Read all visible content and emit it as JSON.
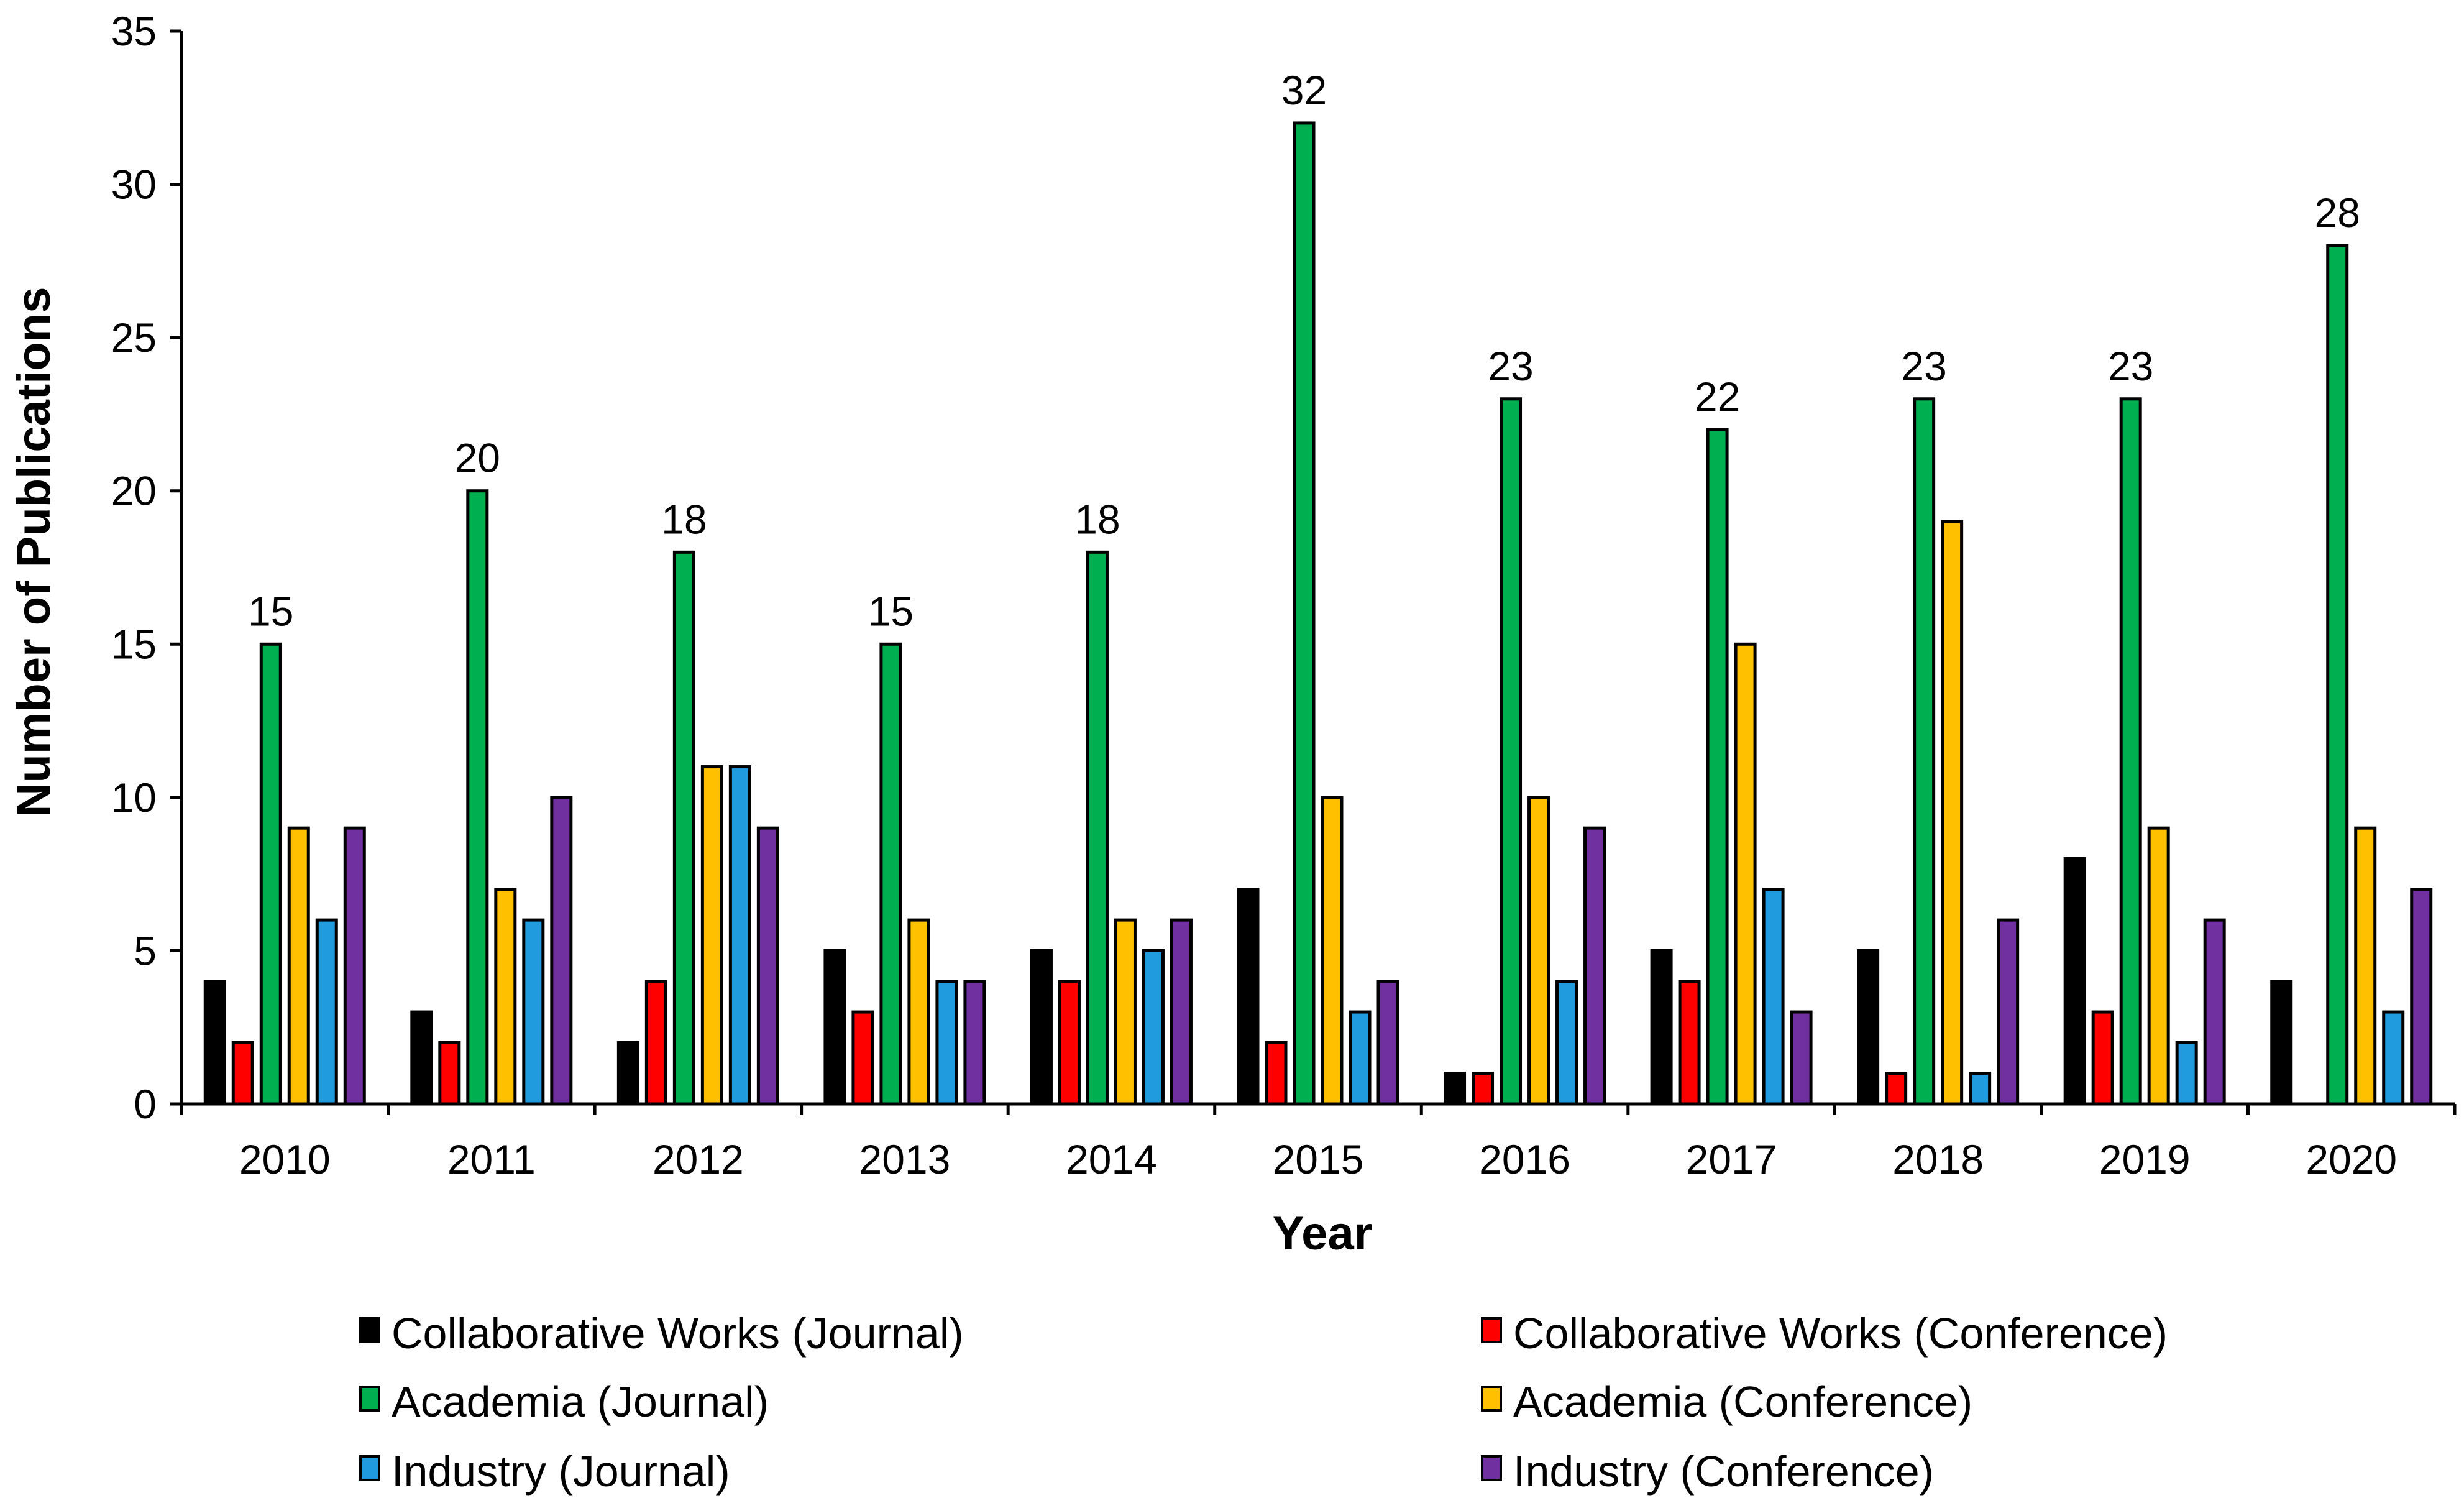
{
  "chart_data": {
    "type": "bar",
    "title": "",
    "xlabel": "Year",
    "ylabel": "Number of Publications",
    "ylim": [
      0,
      35
    ],
    "yticks": [
      0,
      5,
      10,
      15,
      20,
      25,
      30,
      35
    ],
    "grid": false,
    "legend_position": "bottom",
    "categories": [
      "2010",
      "2011",
      "2012",
      "2013",
      "2014",
      "2015",
      "2016",
      "2017",
      "2018",
      "2019",
      "2020"
    ],
    "series": [
      {
        "name": "Collaborative Works (Journal)",
        "color": "#000000",
        "values": [
          4,
          3,
          2,
          5,
          5,
          7,
          1,
          5,
          5,
          8,
          4
        ]
      },
      {
        "name": "Collaborative Works (Conference)",
        "color": "#ff0000",
        "values": [
          2,
          2,
          4,
          3,
          4,
          2,
          1,
          4,
          1,
          3,
          0
        ]
      },
      {
        "name": "Academia (Journal)",
        "color": "#00b050",
        "values": [
          15,
          20,
          18,
          15,
          18,
          32,
          23,
          22,
          23,
          23,
          28
        ]
      },
      {
        "name": "Academia (Conference)",
        "color": "#ffc000",
        "values": [
          9,
          7,
          11,
          6,
          6,
          10,
          10,
          15,
          19,
          9,
          9
        ]
      },
      {
        "name": "Industry (Journal)",
        "color": "#1f9bde",
        "values": [
          6,
          6,
          11,
          4,
          5,
          3,
          4,
          7,
          1,
          2,
          3
        ]
      },
      {
        "name": "Industry (Conference)",
        "color": "#7030a0",
        "values": [
          9,
          10,
          9,
          4,
          6,
          4,
          9,
          3,
          6,
          6,
          7
        ]
      }
    ],
    "data_labels": {
      "series": "Academia (Journal)",
      "values": [
        "15",
        "20",
        "18",
        "15",
        "18",
        "32",
        "23",
        "22",
        "23",
        "23",
        "28"
      ]
    }
  }
}
